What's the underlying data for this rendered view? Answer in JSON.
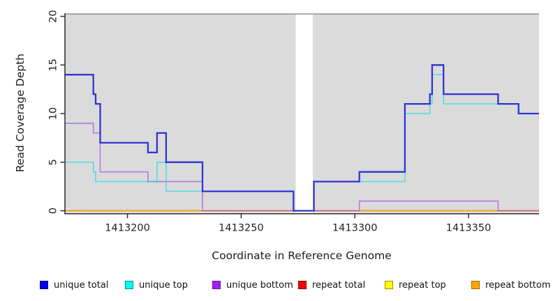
{
  "chart_data": {
    "type": "line",
    "subtype": "step",
    "title": "",
    "xlabel": "Coordinate in Reference Genome",
    "ylabel": "Read Coverage Depth",
    "xlim": [
      1413172.5,
      1413381.0
    ],
    "ylim": [
      0,
      20
    ],
    "x_ticks": [
      1413200,
      1413250,
      1413300,
      1413350
    ],
    "y_ticks": [
      0,
      5,
      10,
      15,
      20
    ],
    "grid": false,
    "panel_bg": "#dbdbdb",
    "panel_top_border": "#919191",
    "axis_color": "#2b2b2b",
    "gap": {
      "start": 1413274,
      "end": 1413281.5,
      "note": "white band, all series at 0"
    },
    "series": [
      {
        "name": "repeat total",
        "color": "#e02020",
        "legend_fill": "#ff0000",
        "legend_border": "#8b0000",
        "width": 1.6,
        "opacity": 1,
        "points": [
          [
            1413172.5,
            0
          ]
        ]
      },
      {
        "name": "repeat top",
        "color": "#f0e000",
        "legend_fill": "#ffff00",
        "legend_border": "#9a8f00",
        "width": 1.6,
        "opacity": 1,
        "points": [
          [
            1413172.5,
            0
          ]
        ]
      },
      {
        "name": "repeat bottom",
        "color": "#ff9e14",
        "legend_fill": "#ffa500",
        "legend_border": "#b06000",
        "width": 1.6,
        "opacity": 1,
        "points": [
          [
            1413172.5,
            0
          ]
        ]
      },
      {
        "name": "unique bottom",
        "color": "#9a3fe0",
        "legend_fill": "#a020f0",
        "legend_border": "#6e12b5",
        "width": 1.6,
        "opacity": 0.62,
        "points": [
          [
            1413172.5,
            9
          ],
          [
            1413185,
            8
          ],
          [
            1413188,
            4
          ],
          [
            1413209,
            3
          ],
          [
            1413233,
            0
          ],
          [
            1413302,
            1
          ],
          [
            1413363,
            0
          ]
        ]
      },
      {
        "name": "unique top",
        "color": "#00dde8",
        "legend_fill": "#00ffff",
        "legend_border": "#008b8b",
        "width": 1.6,
        "opacity": 0.62,
        "points": [
          [
            1413172.5,
            5
          ],
          [
            1413185,
            4
          ],
          [
            1413186,
            3
          ],
          [
            1413213,
            5
          ],
          [
            1413217,
            2
          ],
          [
            1413273,
            0
          ],
          [
            1413282,
            3
          ],
          [
            1413322,
            10
          ],
          [
            1413333,
            11
          ],
          [
            1413334,
            14
          ],
          [
            1413339,
            11
          ],
          [
            1413372,
            10
          ]
        ]
      },
      {
        "name": "unique total",
        "color": "#3232d6",
        "legend_fill": "#0000ee",
        "legend_border": "#000088",
        "width": 2.3,
        "opacity": 1,
        "points": [
          [
            1413172.5,
            14
          ],
          [
            1413185,
            12
          ],
          [
            1413186,
            11
          ],
          [
            1413188,
            7
          ],
          [
            1413209,
            6
          ],
          [
            1413213,
            8
          ],
          [
            1413217,
            5
          ],
          [
            1413233,
            2
          ],
          [
            1413273,
            0
          ],
          [
            1413282,
            3
          ],
          [
            1413302,
            4
          ],
          [
            1413322,
            11
          ],
          [
            1413333,
            12
          ],
          [
            1413334,
            15
          ],
          [
            1413339,
            12
          ],
          [
            1413363,
            11
          ],
          [
            1413372,
            10
          ]
        ]
      }
    ],
    "legend": [
      "unique total",
      "unique top",
      "unique bottom",
      "repeat total",
      "repeat top",
      "repeat bottom"
    ],
    "legend_position": "bottom"
  }
}
